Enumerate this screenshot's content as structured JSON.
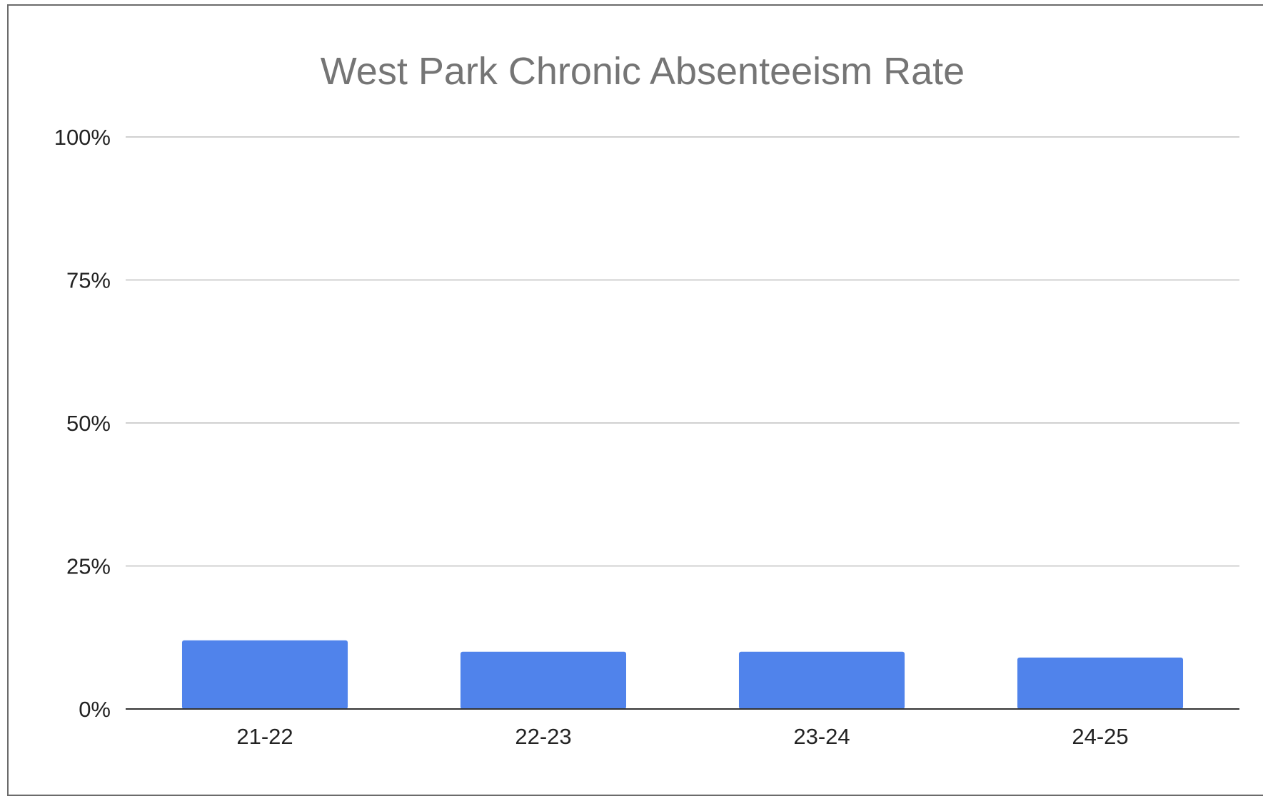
{
  "chart_data": {
    "type": "bar",
    "title": "West Park Chronic Absenteeism Rate",
    "xlabel": "",
    "ylabel": "",
    "categories": [
      "21-22",
      "22-23",
      "23-24",
      "24-25"
    ],
    "values": [
      12,
      10,
      10,
      9
    ],
    "ylim": [
      0,
      100
    ],
    "yticks": [
      0,
      25,
      50,
      75,
      100
    ],
    "ytick_labels": [
      "0%",
      "25%",
      "50%",
      "75%",
      "100%"
    ],
    "grid": true,
    "legend": "none",
    "bar_color": "#5083eb"
  }
}
